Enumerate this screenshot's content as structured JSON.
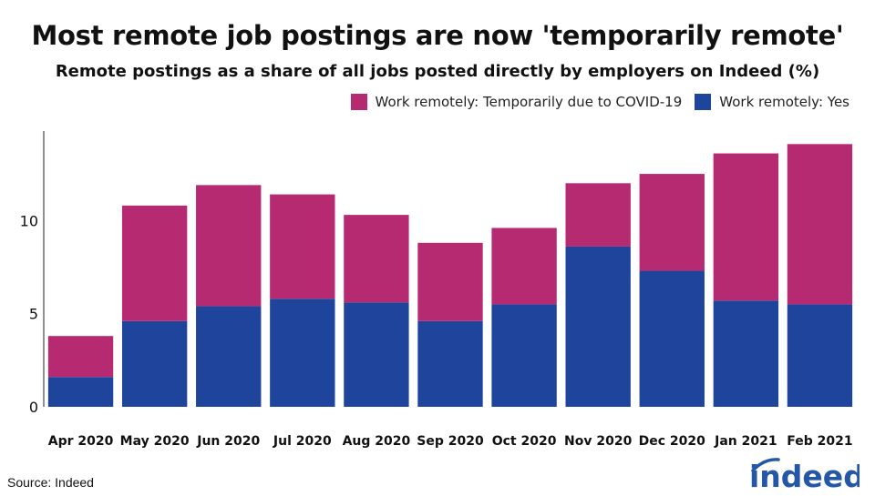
{
  "chart_data": {
    "type": "bar",
    "stacked": true,
    "title": "Most remote job postings are now 'temporarily remote'",
    "subtitle": "Remote postings as a share of all jobs posted directly by employers on Indeed (%)",
    "categories": [
      "Apr 2020",
      "May 2020",
      "Jun 2020",
      "Jul 2020",
      "Aug 2020",
      "Sep 2020",
      "Oct 2020",
      "Nov 2020",
      "Dec 2020",
      "Jan 2021",
      "Feb 2021"
    ],
    "series": [
      {
        "name": "Work remotely: Yes",
        "color": "#1f449c",
        "values": [
          1.6,
          4.6,
          5.4,
          5.8,
          5.6,
          4.6,
          5.5,
          8.6,
          7.3,
          5.7,
          5.5
        ]
      },
      {
        "name": "Work remotely: Temporarily due to COVID-19",
        "color": "#b52a71",
        "values": [
          2.2,
          6.2,
          6.5,
          5.6,
          4.7,
          4.2,
          4.1,
          3.4,
          5.2,
          7.9,
          8.6
        ]
      }
    ],
    "legend_order": [
      "Work remotely: Temporarily due to COVID-19",
      "Work remotely: Yes"
    ],
    "legend_position": "top-right",
    "xlabel": "",
    "ylabel": "",
    "ylim": [
      0,
      14.8
    ],
    "yticks": [
      0,
      5,
      10
    ],
    "grid": false
  },
  "source": "Source: Indeed",
  "logo_text": "indeed",
  "colors": {
    "yes": "#1f449c",
    "temporary": "#b52a71",
    "logo": "#2557a7"
  }
}
